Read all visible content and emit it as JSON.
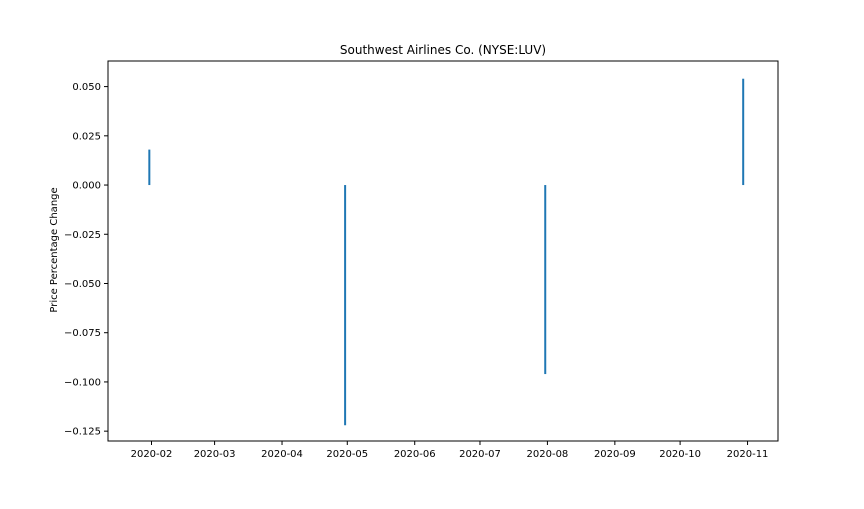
{
  "chart_data": {
    "type": "bar",
    "title": "Southwest Airlines Co. (NYSE:LUV)",
    "xlabel": "",
    "ylabel": "Price Percentage Change",
    "x_tick_labels": [
      "2020-02",
      "2020-03",
      "2020-04",
      "2020-05",
      "2020-06",
      "2020-07",
      "2020-08",
      "2020-09",
      "2020-10",
      "2020-11"
    ],
    "y_tick_labels": [
      "0.050",
      "0.025",
      "0.000",
      "−0.025",
      "−0.050",
      "−0.075",
      "−0.100",
      "−0.125"
    ],
    "y_ticks": [
      0.05,
      0.025,
      0.0,
      -0.025,
      -0.05,
      -0.075,
      -0.1,
      -0.125
    ],
    "ylim": [
      -0.13,
      0.063
    ],
    "xlim": [
      "2020-01-12",
      "2020-11-15"
    ],
    "series": [
      {
        "points": [
          {
            "date": "2020-01-31",
            "value": 0.018
          },
          {
            "date": "2020-04-30",
            "value": -0.122
          },
          {
            "date": "2020-07-31",
            "value": -0.096
          },
          {
            "date": "2020-10-30",
            "value": 0.054
          }
        ]
      }
    ],
    "grid": false,
    "colors": {
      "bar": "#1f77b4",
      "axes": "#000000",
      "background": "#ffffff"
    }
  }
}
